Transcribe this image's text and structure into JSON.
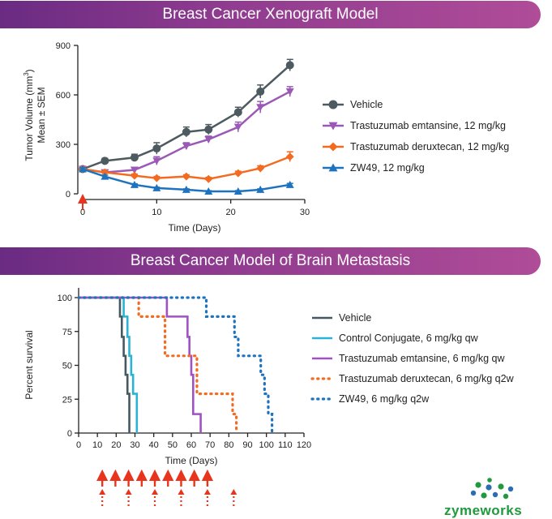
{
  "banners": {
    "top": "Breast Cancer Xenograft Model",
    "bottom": "Breast Cancer Model of Brain Metastasis"
  },
  "brand": {
    "logo_part1": "zyme",
    "logo_part2": "works",
    "green": "#1f9a3e",
    "blue": "#2a6db5"
  },
  "chart_data": [
    {
      "type": "line",
      "title": "Breast Cancer Xenograft Model",
      "xlabel": "Time (Days)",
      "ylabel_line1": "Tumor Volume (mm",
      "ylabel_sup": "3",
      "ylabel_close": ")",
      "ylabel_line2": "Mean ± SEM",
      "xlim": [
        0,
        30
      ],
      "ylim": [
        0,
        900
      ],
      "xticks": [
        "0",
        "10",
        "20",
        "30"
      ],
      "yticks": [
        "0",
        "300",
        "600",
        "900"
      ],
      "dosing_marker": "red up arrow at day 0",
      "series": [
        {
          "name": "Vehicle",
          "color": "#4d5a60",
          "marker": "circle",
          "x": [
            0,
            3,
            7,
            10,
            14,
            17,
            21,
            24,
            28
          ],
          "y": [
            150,
            200,
            220,
            275,
            375,
            390,
            495,
            620,
            780
          ],
          "err": [
            15,
            15,
            20,
            35,
            30,
            30,
            30,
            40,
            35
          ]
        },
        {
          "name": "Trastuzumab emtansine, 12 mg/kg",
          "color": "#9b59b6",
          "marker": "triangle-down",
          "x": [
            0,
            3,
            7,
            10,
            14,
            17,
            21,
            24,
            28
          ],
          "y": [
            150,
            130,
            145,
            200,
            290,
            330,
            405,
            525,
            620
          ],
          "err": [
            10,
            10,
            15,
            25,
            20,
            20,
            30,
            35,
            30
          ]
        },
        {
          "name": "Trastuzumab deruxtecan, 12 mg/kg",
          "color": "#f26b21",
          "marker": "diamond",
          "x": [
            0,
            3,
            7,
            10,
            14,
            17,
            21,
            24,
            28
          ],
          "y": [
            150,
            130,
            110,
            95,
            105,
            90,
            125,
            155,
            225
          ],
          "err": [
            10,
            10,
            10,
            10,
            10,
            10,
            12,
            15,
            30
          ]
        },
        {
          "name": "ZW49, 12 mg/kg",
          "color": "#1e73be",
          "marker": "triangle-up",
          "x": [
            0,
            3,
            7,
            10,
            14,
            17,
            21,
            24,
            28
          ],
          "y": [
            150,
            105,
            55,
            35,
            25,
            15,
            15,
            25,
            55
          ],
          "err": [
            8,
            8,
            6,
            5,
            5,
            4,
            4,
            5,
            8
          ]
        }
      ]
    },
    {
      "type": "line",
      "subtype": "kaplan-meier",
      "title": "Breast Cancer Model of Brain Metastasis",
      "xlabel": "Time (Days)",
      "ylabel": "Percent survival",
      "xlim": [
        0,
        120
      ],
      "ylim": [
        0,
        100
      ],
      "xticks": [
        "0",
        "10",
        "20",
        "30",
        "40",
        "50",
        "60",
        "70",
        "80",
        "90",
        "100",
        "110",
        "120"
      ],
      "yticks": [
        "0",
        "25",
        "50",
        "75",
        "100"
      ],
      "dosing_schedule": {
        "qw_days": [
          10,
          17,
          24,
          31,
          38,
          45,
          52,
          59,
          66
        ],
        "q2w_days": [
          10,
          24,
          38,
          52,
          66,
          80
        ]
      },
      "series": [
        {
          "name": "Vehicle",
          "color": "#455a60",
          "style": "solid",
          "steps": [
            [
              0,
              100
            ],
            [
              22,
              100
            ],
            [
              22,
              86
            ],
            [
              23,
              86
            ],
            [
              23,
              71
            ],
            [
              24,
              71
            ],
            [
              24,
              57
            ],
            [
              25,
              57
            ],
            [
              25,
              43
            ],
            [
              26,
              43
            ],
            [
              26,
              29
            ],
            [
              27,
              29
            ],
            [
              27,
              0
            ]
          ]
        },
        {
          "name": "Control Conjugate, 6 mg/kg qw",
          "color": "#2ab3d6",
          "style": "solid",
          "steps": [
            [
              0,
              100
            ],
            [
              24,
              100
            ],
            [
              24,
              86
            ],
            [
              26,
              86
            ],
            [
              26,
              71
            ],
            [
              27,
              71
            ],
            [
              27,
              57
            ],
            [
              28,
              57
            ],
            [
              28,
              43
            ],
            [
              29,
              43
            ],
            [
              29,
              29
            ],
            [
              31,
              29
            ],
            [
              31,
              0
            ]
          ]
        },
        {
          "name": "Trastuzumab emtansine, 6 mg/kg qw",
          "color": "#a052c4",
          "style": "solid",
          "steps": [
            [
              0,
              100
            ],
            [
              47,
              100
            ],
            [
              47,
              86
            ],
            [
              58,
              86
            ],
            [
              58,
              71
            ],
            [
              59,
              71
            ],
            [
              59,
              57
            ],
            [
              60,
              57
            ],
            [
              60,
              43
            ],
            [
              61,
              43
            ],
            [
              61,
              14
            ],
            [
              65,
              14
            ],
            [
              65,
              0
            ]
          ]
        },
        {
          "name": "Trastuzumab deruxtecan, 6 mg/kg q2w",
          "color": "#f26b21",
          "style": "dotted",
          "steps": [
            [
              0,
              100
            ],
            [
              32,
              100
            ],
            [
              32,
              86
            ],
            [
              46,
              86
            ],
            [
              46,
              57
            ],
            [
              63,
              57
            ],
            [
              63,
              29
            ],
            [
              82,
              29
            ],
            [
              82,
              14
            ],
            [
              84,
              14
            ],
            [
              84,
              0
            ]
          ]
        },
        {
          "name": "ZW49, 6 mg/kg q2w",
          "color": "#1e73be",
          "style": "dotted",
          "steps": [
            [
              0,
              100
            ],
            [
              68,
              100
            ],
            [
              68,
              86
            ],
            [
              83,
              86
            ],
            [
              83,
              71
            ],
            [
              85,
              71
            ],
            [
              85,
              57
            ],
            [
              97,
              57
            ],
            [
              97,
              43
            ],
            [
              99,
              43
            ],
            [
              99,
              29
            ],
            [
              101,
              29
            ],
            [
              101,
              14
            ],
            [
              103,
              14
            ],
            [
              103,
              0
            ]
          ]
        }
      ]
    }
  ]
}
